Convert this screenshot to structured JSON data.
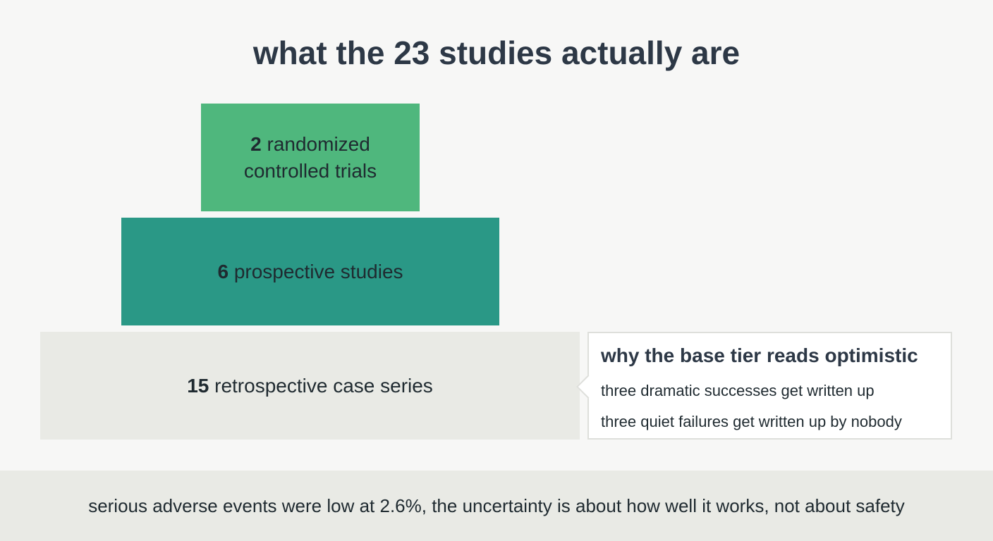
{
  "title": "what the 23 studies actually are",
  "tiers": [
    {
      "count": 2,
      "label": "randomized controlled trials"
    },
    {
      "count": 6,
      "label": "prospective studies"
    },
    {
      "count": 15,
      "label": "retrospective case series"
    }
  ],
  "callout": {
    "title": "why the base tier reads optimistic",
    "lines": [
      "three dramatic successes get written up",
      "three quiet failures get written up by nobody"
    ]
  },
  "footer": "serious adverse events were low at 2.6%, the uncertainty is about how well it works, not about safety"
}
